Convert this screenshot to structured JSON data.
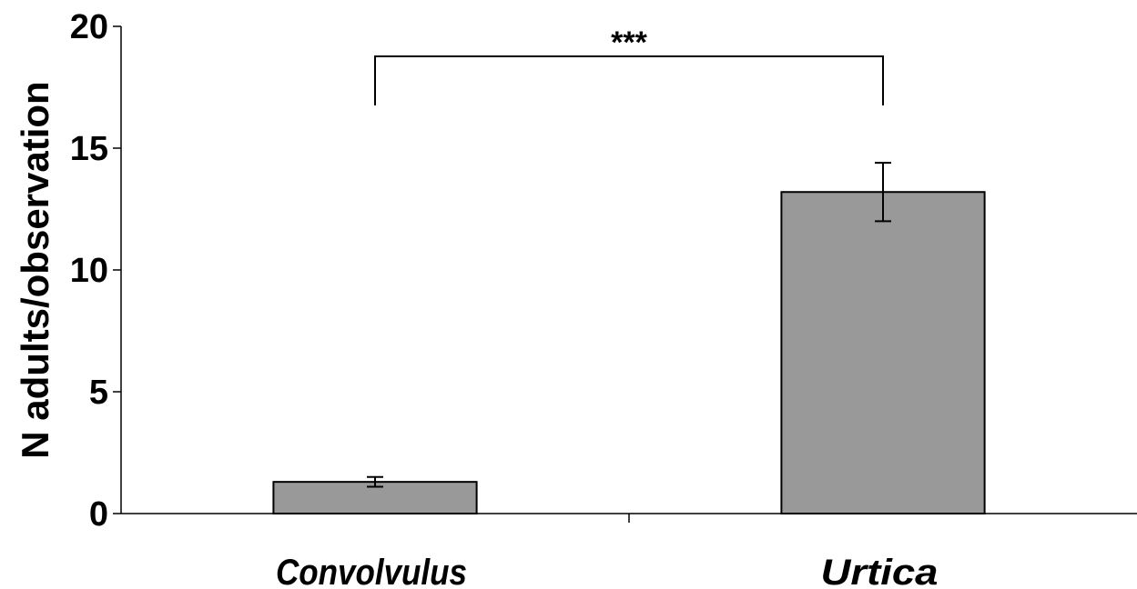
{
  "chart_data": {
    "type": "bar",
    "title": "",
    "xlabel": "",
    "ylabel": "N adults/observation",
    "categories": [
      "Convolvulus",
      "Urtica"
    ],
    "values": [
      1.3,
      13.2
    ],
    "errors": [
      0.2,
      1.2
    ],
    "ylim": [
      0,
      20
    ],
    "yticks": [
      "0",
      "5",
      "10",
      "15",
      "20"
    ],
    "bar_color": "#999999",
    "grid": false,
    "significance": {
      "between": [
        0,
        1
      ],
      "label": "***"
    }
  }
}
